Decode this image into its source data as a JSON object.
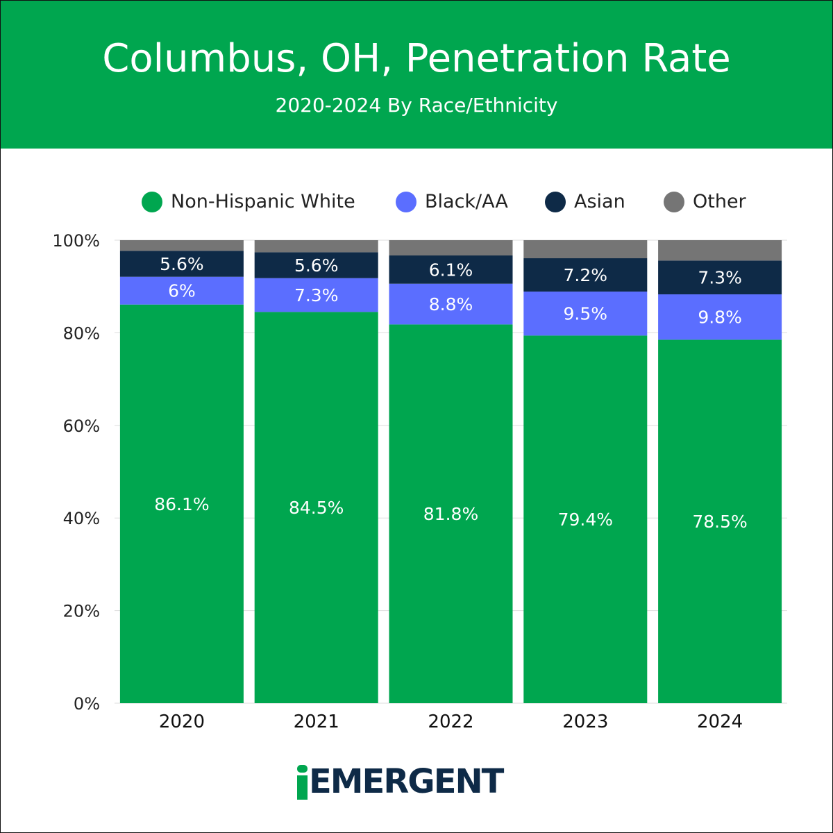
{
  "header": {
    "title": "Columbus, OH, Penetration Rate",
    "subtitle": "2020-2024 By Race/Ethnicity"
  },
  "chart_data": {
    "type": "bar",
    "stacked": true,
    "title": "Columbus, OH, Penetration Rate",
    "subtitle": "2020-2024 By Race/Ethnicity",
    "xlabel": "",
    "ylabel": "",
    "ylim": [
      0,
      100
    ],
    "yticks": [
      "0%",
      "20%",
      "40%",
      "60%",
      "80%",
      "100%"
    ],
    "categories": [
      "2020",
      "2021",
      "2022",
      "2023",
      "2024"
    ],
    "grid": true,
    "legend_position": "top",
    "series": [
      {
        "name": "Non-Hispanic White",
        "color": "#00a64f",
        "values": [
          86.1,
          84.5,
          81.8,
          79.4,
          78.5
        ],
        "labels": [
          "86.1%",
          "84.5%",
          "81.8%",
          "79.4%",
          "78.5%"
        ]
      },
      {
        "name": "Black/AA",
        "color": "#5b6eff",
        "values": [
          6,
          7.3,
          8.8,
          9.5,
          9.8
        ],
        "labels": [
          "6%",
          "7.3%",
          "8.8%",
          "9.5%",
          "9.8%"
        ]
      },
      {
        "name": "Asian",
        "color": "#0e2a47",
        "values": [
          5.6,
          5.6,
          6.1,
          7.2,
          7.3
        ],
        "labels": [
          "5.6%",
          "5.6%",
          "6.1%",
          "7.2%",
          "7.3%"
        ]
      },
      {
        "name": "Other",
        "color": "#757575",
        "values": [
          2.3,
          2.6,
          3.3,
          3.9,
          4.4
        ],
        "labels": [
          "",
          "",
          "",
          "",
          ""
        ]
      }
    ]
  },
  "logo": {
    "prefix": "i",
    "text": "EMERGENT",
    "colors": {
      "green": "#00a64f",
      "navy": "#0e2a47"
    }
  }
}
